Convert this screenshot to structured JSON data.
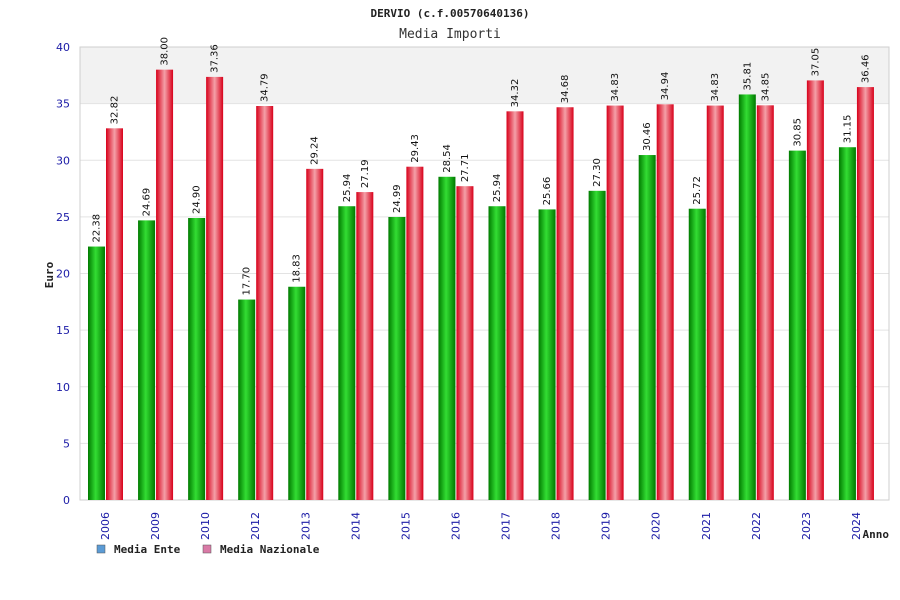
{
  "chart_data": {
    "type": "bar",
    "title": "DERVIO (c.f.00570640136)",
    "subtitle": "Media Importi",
    "xlabel": "Anno",
    "ylabel": "Euro",
    "ylim": [
      0,
      40
    ],
    "yticks": [
      0,
      5,
      10,
      15,
      20,
      25,
      30,
      35,
      40
    ],
    "grid": true,
    "legend_position": "bottom-left",
    "categories": [
      "2006",
      "2009",
      "2010",
      "2012",
      "2013",
      "2014",
      "2015",
      "2016",
      "2017",
      "2018",
      "2019",
      "2020",
      "2021",
      "2022",
      "2023",
      "2024"
    ],
    "series": [
      {
        "name": "Media Ente",
        "color": "#00aa00",
        "legend_color": "#5b9bd5",
        "values": [
          22.38,
          24.69,
          24.9,
          17.7,
          18.83,
          25.94,
          24.99,
          28.54,
          25.94,
          25.66,
          27.3,
          30.46,
          25.72,
          35.81,
          30.85,
          31.15
        ],
        "labels": [
          "22.38",
          "24.69",
          "24.90",
          "17.70",
          "18.83",
          "25.94",
          "24.99",
          "28.54",
          "25.94",
          "25.66",
          "27.30",
          "30.46",
          "25.72",
          "35.81",
          "30.85",
          "31.15"
        ]
      },
      {
        "name": "Media Nazionale",
        "color": "#e8101a",
        "legend_color": "#d97aa6",
        "values": [
          32.82,
          38.0,
          37.36,
          34.79,
          29.24,
          27.19,
          29.43,
          27.71,
          34.32,
          34.68,
          34.83,
          34.94,
          34.83,
          34.85,
          37.05,
          36.46
        ],
        "labels": [
          "32.82",
          "38.00",
          "37.36",
          "34.79",
          "29.24",
          "27.19",
          "29.43",
          "27.71",
          "34.32",
          "34.68",
          "34.83",
          "34.94",
          "34.83",
          "34.85",
          "37.05",
          "36.46"
        ]
      }
    ]
  }
}
